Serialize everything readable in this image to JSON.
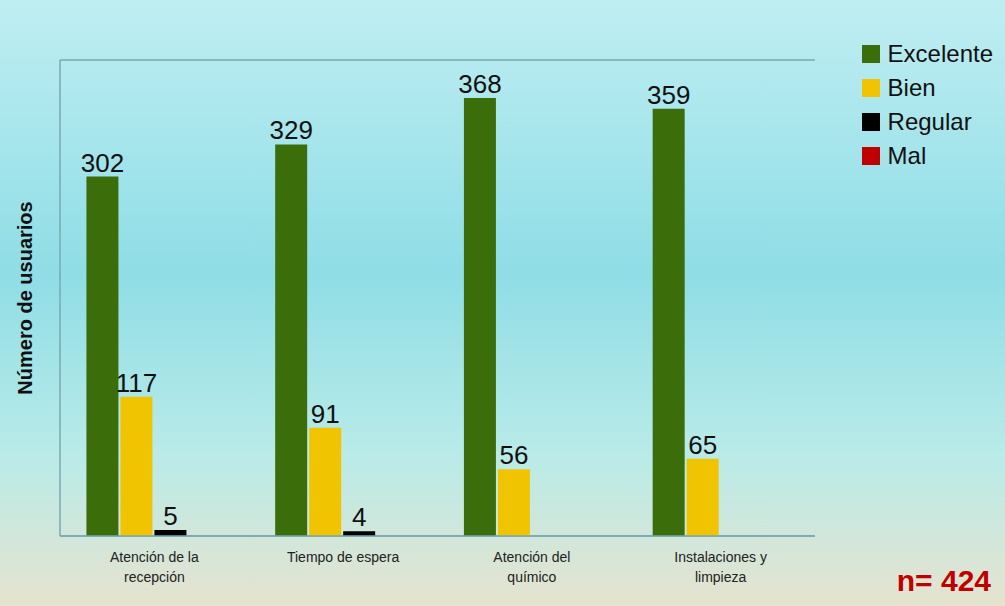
{
  "chart_data": {
    "type": "bar",
    "y_label": "Número de usuarios",
    "annotation": "n= 424",
    "categories": [
      "Atención de la recepción",
      "Tiempo de espera",
      "Atención del químico",
      "Instalaciones y limpieza"
    ],
    "series": [
      {
        "name": "Excelente",
        "color": "#3b6e0a",
        "values": [
          302,
          329,
          368,
          359
        ]
      },
      {
        "name": "Bien",
        "color": "#f0c400",
        "values": [
          117,
          91,
          56,
          65
        ]
      },
      {
        "name": "Regular",
        "color": "#000000",
        "values": [
          5,
          4,
          0,
          0
        ]
      },
      {
        "name": "Mal",
        "color": "#c00000",
        "values": [
          0,
          0,
          0,
          0
        ]
      }
    ],
    "ylim": [
      0,
      400
    ],
    "yticks": [
      0,
      100,
      200,
      300,
      400
    ],
    "grid": true,
    "legend": "upper right",
    "data_labels": true,
    "tick_labels": "x"
  }
}
